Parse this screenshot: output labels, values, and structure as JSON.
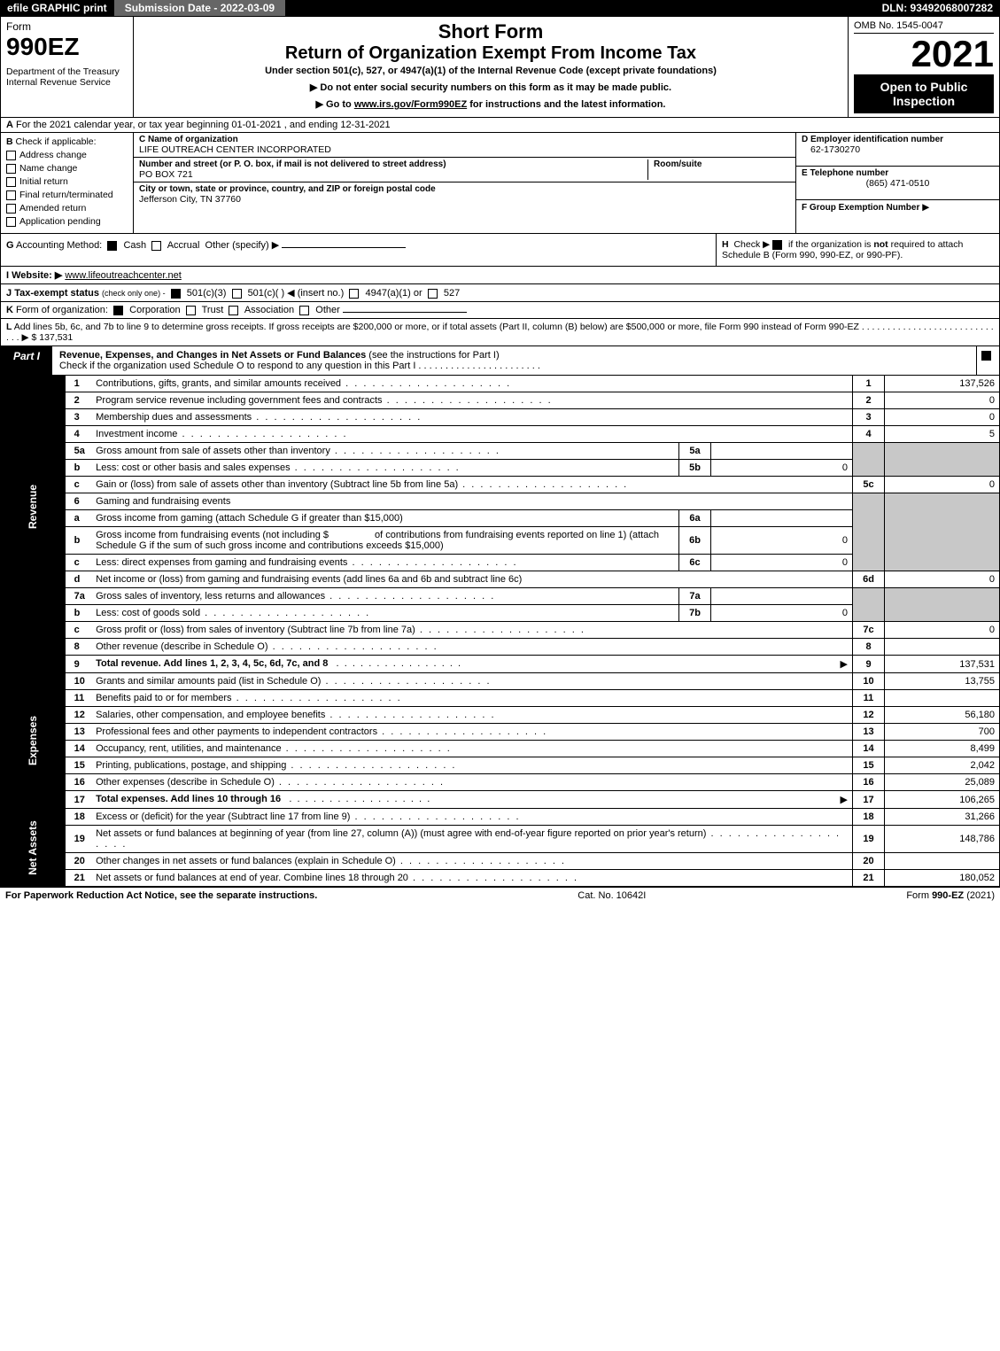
{
  "topbar": {
    "efile": "efile GRAPHIC print",
    "submission_label": "Submission Date - 2022-03-09",
    "dln": "DLN: 93492068007282"
  },
  "header": {
    "form_word": "Form",
    "form_number": "990EZ",
    "dept": "Department of the Treasury\nInternal Revenue Service",
    "short": "Short Form",
    "title": "Return of Organization Exempt From Income Tax",
    "subtitle": "Under section 501(c), 527, or 4947(a)(1) of the Internal Revenue Code (except private foundations)",
    "note1": "▶ Do not enter social security numbers on this form as it may be made public.",
    "note2_pre": "▶ Go to ",
    "note2_link": "www.irs.gov/Form990EZ",
    "note2_post": " for instructions and the latest information.",
    "omb": "OMB No. 1545-0047",
    "year": "2021",
    "open": "Open to Public Inspection"
  },
  "row_a": {
    "letter": "A",
    "text": "For the 2021 calendar year, or tax year beginning 01-01-2021 , and ending 12-31-2021"
  },
  "section_b": {
    "letter": "B",
    "label": "Check if applicable:",
    "opts": [
      "Address change",
      "Name change",
      "Initial return",
      "Final return/terminated",
      "Amended return",
      "Application pending"
    ]
  },
  "section_c": {
    "name_label": "C Name of organization",
    "name": "LIFE OUTREACH CENTER INCORPORATED",
    "street_label": "Number and street (or P. O. box, if mail is not delivered to street address)",
    "room_label": "Room/suite",
    "street": "PO BOX 721",
    "city_label": "City or town, state or province, country, and ZIP or foreign postal code",
    "city": "Jefferson City, TN   37760"
  },
  "section_d": {
    "label": "D Employer identification number",
    "value": "62-1730270"
  },
  "section_e": {
    "label": "E Telephone number",
    "value": "(865) 471-0510"
  },
  "section_f": {
    "label": "F Group Exemption Number",
    "arrow": "▶"
  },
  "section_g": {
    "letter": "G",
    "label": "Accounting Method:",
    "cash": "Cash",
    "accrual": "Accrual",
    "other": "Other (specify) ▶"
  },
  "section_h": {
    "letter": "H",
    "text1": "Check ▶",
    "text2": " if the organization is ",
    "not": "not",
    "text3": " required to attach Schedule B (Form 990, 990-EZ, or 990-PF)."
  },
  "section_i": {
    "letter": "I",
    "label": "Website: ▶",
    "value": "www.lifeoutreachcenter.net"
  },
  "section_j": {
    "letter": "J",
    "label": "Tax-exempt status",
    "sub": "(check only one) -",
    "opt1": "501(c)(3)",
    "opt2": "501(c)(  ) ◀ (insert no.)",
    "opt3": "4947(a)(1) or",
    "opt4": "527"
  },
  "section_k": {
    "letter": "K",
    "label": "Form of organization:",
    "opts": [
      "Corporation",
      "Trust",
      "Association",
      "Other"
    ]
  },
  "section_l": {
    "letter": "L",
    "text": "Add lines 5b, 6c, and 7b to line 9 to determine gross receipts. If gross receipts are $200,000 or more, or if total assets (Part II, column (B) below) are $500,000 or more, file Form 990 instead of Form 990-EZ  .   .   .   .   .   .   .   .   .   .   .   .   .   .   .   .   .   .   .   .   .   .   .   .   .   .   .   .   .   ▶ $",
    "amount": "137,531"
  },
  "part1": {
    "tag": "Part I",
    "title_bold": "Revenue, Expenses, and Changes in Net Assets or Fund Balances",
    "title_rest": " (see the instructions for Part I)",
    "subtitle": "Check if the organization used Schedule O to respond to any question in this Part I  .  .  .  .  .  .  .  .  .  .  .  .  .  .  .  .  .  .  .  .  .  .  ."
  },
  "sidebar": {
    "revenue": "Revenue",
    "expenses": "Expenses",
    "netassets": "Net Assets"
  },
  "lines": {
    "l1": {
      "num": "1",
      "desc": "Contributions, gifts, grants, and similar amounts received",
      "ln": "1",
      "amt": "137,526"
    },
    "l2": {
      "num": "2",
      "desc": "Program service revenue including government fees and contracts",
      "ln": "2",
      "amt": "0"
    },
    "l3": {
      "num": "3",
      "desc": "Membership dues and assessments",
      "ln": "3",
      "amt": "0"
    },
    "l4": {
      "num": "4",
      "desc": "Investment income",
      "ln": "4",
      "amt": "5"
    },
    "l5a": {
      "num": "5a",
      "desc": "Gross amount from sale of assets other than inventory",
      "subln": "5a",
      "subval": ""
    },
    "l5b": {
      "num": "b",
      "desc": "Less: cost or other basis and sales expenses",
      "subln": "5b",
      "subval": "0"
    },
    "l5c": {
      "num": "c",
      "desc": "Gain or (loss) from sale of assets other than inventory (Subtract line 5b from line 5a)",
      "ln": "5c",
      "amt": "0"
    },
    "l6": {
      "num": "6",
      "desc": "Gaming and fundraising events"
    },
    "l6a": {
      "num": "a",
      "desc": "Gross income from gaming (attach Schedule G if greater than $15,000)",
      "subln": "6a",
      "subval": ""
    },
    "l6b": {
      "num": "b",
      "desc1": "Gross income from fundraising events (not including $",
      "desc2": "of contributions from fundraising events reported on line 1) (attach Schedule G if the sum of such gross income and contributions exceeds $15,000)",
      "subln": "6b",
      "subval": "0"
    },
    "l6c": {
      "num": "c",
      "desc": "Less: direct expenses from gaming and fundraising events",
      "subln": "6c",
      "subval": "0"
    },
    "l6d": {
      "num": "d",
      "desc": "Net income or (loss) from gaming and fundraising events (add lines 6a and 6b and subtract line 6c)",
      "ln": "6d",
      "amt": "0"
    },
    "l7a": {
      "num": "7a",
      "desc": "Gross sales of inventory, less returns and allowances",
      "subln": "7a",
      "subval": ""
    },
    "l7b": {
      "num": "b",
      "desc": "Less: cost of goods sold",
      "subln": "7b",
      "subval": "0"
    },
    "l7c": {
      "num": "c",
      "desc": "Gross profit or (loss) from sales of inventory (Subtract line 7b from line 7a)",
      "ln": "7c",
      "amt": "0"
    },
    "l8": {
      "num": "8",
      "desc": "Other revenue (describe in Schedule O)",
      "ln": "8",
      "amt": ""
    },
    "l9": {
      "num": "9",
      "desc": "Total revenue. Add lines 1, 2, 3, 4, 5c, 6d, 7c, and 8",
      "arrow": "▶",
      "ln": "9",
      "amt": "137,531"
    },
    "l10": {
      "num": "10",
      "desc": "Grants and similar amounts paid (list in Schedule O)",
      "ln": "10",
      "amt": "13,755"
    },
    "l11": {
      "num": "11",
      "desc": "Benefits paid to or for members",
      "ln": "11",
      "amt": ""
    },
    "l12": {
      "num": "12",
      "desc": "Salaries, other compensation, and employee benefits",
      "ln": "12",
      "amt": "56,180"
    },
    "l13": {
      "num": "13",
      "desc": "Professional fees and other payments to independent contractors",
      "ln": "13",
      "amt": "700"
    },
    "l14": {
      "num": "14",
      "desc": "Occupancy, rent, utilities, and maintenance",
      "ln": "14",
      "amt": "8,499"
    },
    "l15": {
      "num": "15",
      "desc": "Printing, publications, postage, and shipping",
      "ln": "15",
      "amt": "2,042"
    },
    "l16": {
      "num": "16",
      "desc": "Other expenses (describe in Schedule O)",
      "ln": "16",
      "amt": "25,089"
    },
    "l17": {
      "num": "17",
      "desc": "Total expenses. Add lines 10 through 16",
      "arrow": "▶",
      "ln": "17",
      "amt": "106,265"
    },
    "l18": {
      "num": "18",
      "desc": "Excess or (deficit) for the year (Subtract line 17 from line 9)",
      "ln": "18",
      "amt": "31,266"
    },
    "l19": {
      "num": "19",
      "desc": "Net assets or fund balances at beginning of year (from line 27, column (A)) (must agree with end-of-year figure reported on prior year's return)",
      "ln": "19",
      "amt": "148,786"
    },
    "l20": {
      "num": "20",
      "desc": "Other changes in net assets or fund balances (explain in Schedule O)",
      "ln": "20",
      "amt": ""
    },
    "l21": {
      "num": "21",
      "desc": "Net assets or fund balances at end of year. Combine lines 18 through 20",
      "ln": "21",
      "amt": "180,052"
    }
  },
  "footer": {
    "left": "For Paperwork Reduction Act Notice, see the separate instructions.",
    "mid": "Cat. No. 10642I",
    "right_pre": "Form ",
    "right_bold": "990-EZ",
    "right_post": " (2021)"
  },
  "style": {
    "colors": {
      "black": "#000000",
      "white": "#ffffff",
      "grey": "#c8c8c8",
      "topbar_mid": "#666666"
    },
    "font_family": "Verdana, Arial, sans-serif"
  }
}
